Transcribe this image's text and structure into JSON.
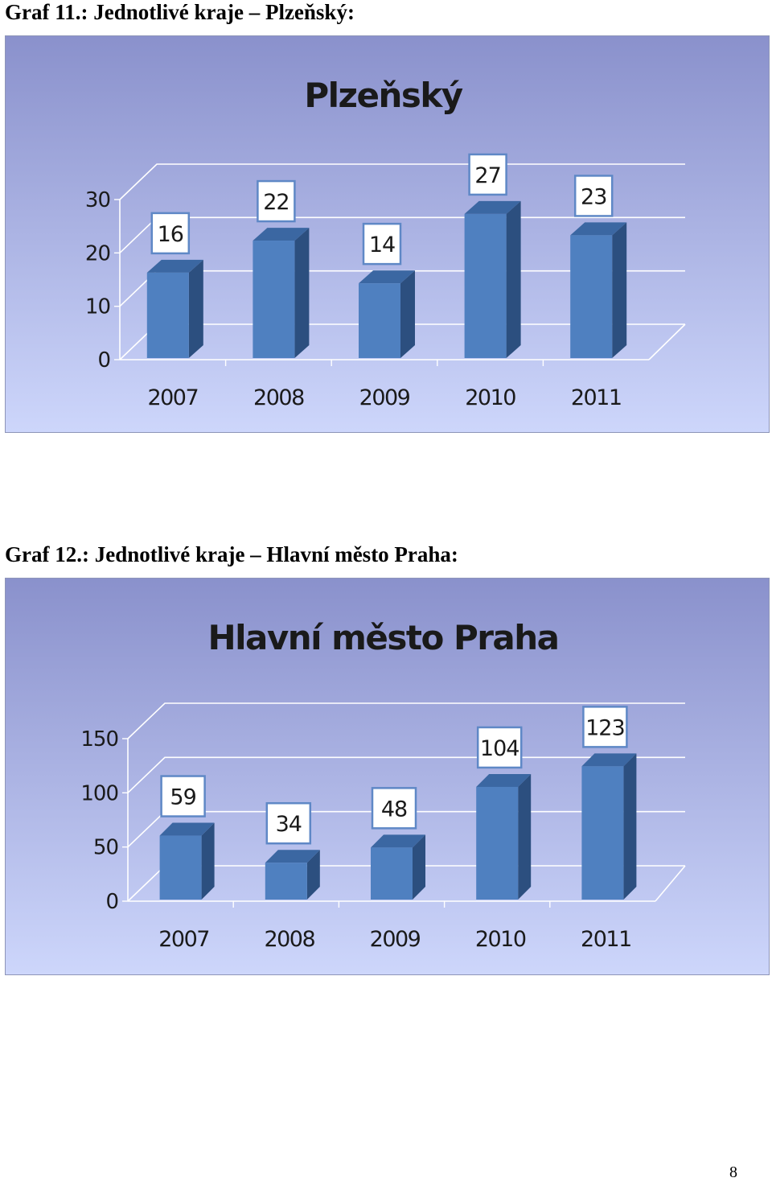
{
  "captions": [
    "Graf 11.: Jednotlivé kraje – Plzeňský:",
    "Graf 12.: Jednotlivé kraje – Hlavní město Praha:"
  ],
  "page_number": "8",
  "colors": {
    "bar_front": "#4f80c0",
    "bar_side": "#2c4f7f",
    "bar_top": "#3b67a2",
    "background_top": "#8a91cc",
    "background_bottom": "#cdd6fb",
    "gridline": "#ffffff",
    "label_border": "#5f88c6"
  },
  "chart_data": [
    {
      "type": "bar",
      "title": "Plzeňský",
      "categories": [
        "2007",
        "2008",
        "2009",
        "2010",
        "2011"
      ],
      "values": [
        16,
        22,
        14,
        27,
        23
      ],
      "yticks": [
        "0",
        "10",
        "20",
        "30"
      ],
      "ylim": [
        0,
        30
      ],
      "grid": true,
      "legend": "none",
      "style": "3d-column"
    },
    {
      "type": "bar",
      "title": "Hlavní město Praha",
      "categories": [
        "2007",
        "2008",
        "2009",
        "2010",
        "2011"
      ],
      "values": [
        59,
        34,
        48,
        104,
        123
      ],
      "yticks": [
        "0",
        "50",
        "100",
        "150"
      ],
      "ylim": [
        0,
        150
      ],
      "grid": true,
      "legend": "none",
      "style": "3d-column"
    }
  ]
}
